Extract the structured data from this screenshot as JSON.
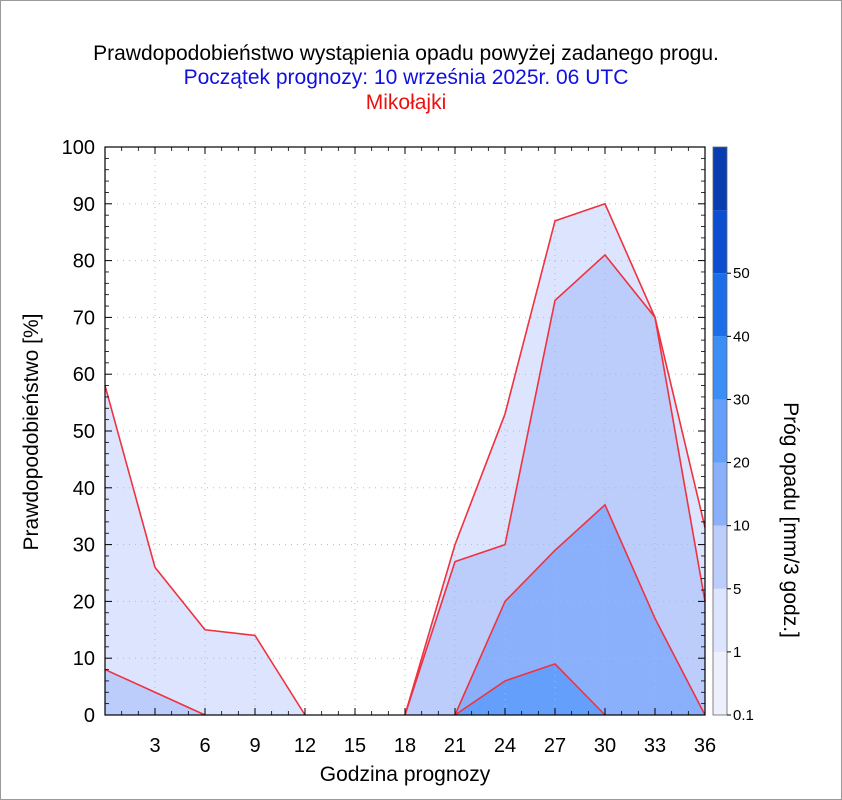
{
  "title": "Prawdopodobieństwo wystąpienia opadu powyżej zadanego progu.",
  "subtitle": "Początek prognozy: 10 września 2025r. 06 UTC",
  "location": "Mikołajki",
  "colors": {
    "title": "#000000",
    "subtitle": "#1010e0",
    "location": "#ee1010",
    "outline": "#ee3340"
  },
  "chart_data": {
    "type": "area",
    "xlabel": "Godzina prognozy",
    "ylabel": "Prawdopodobieństwo [%]",
    "xlim": [
      0,
      36
    ],
    "ylim": [
      0,
      100
    ],
    "x": [
      0,
      3,
      6,
      9,
      12,
      15,
      18,
      21,
      24,
      27,
      30,
      33,
      36
    ],
    "x_ticks": [
      3,
      6,
      9,
      12,
      15,
      18,
      21,
      24,
      27,
      30,
      33,
      36
    ],
    "y_ticks": [
      0,
      10,
      20,
      30,
      40,
      50,
      60,
      70,
      80,
      90,
      100
    ],
    "grid": true,
    "series": [
      {
        "threshold": "0.1",
        "color": "#dde4fd",
        "values": [
          58,
          26,
          15,
          14,
          0,
          0,
          0,
          30,
          53,
          87,
          90,
          70,
          33
        ]
      },
      {
        "threshold": "1",
        "color": "#bcccfb",
        "values": [
          8,
          4,
          0,
          0,
          0,
          0,
          0,
          27,
          30,
          73,
          81,
          70,
          20
        ]
      },
      {
        "threshold": "5",
        "color": "#8bb0fb",
        "values": [
          0,
          0,
          0,
          0,
          0,
          0,
          0,
          0,
          20,
          29,
          37,
          17,
          0
        ]
      },
      {
        "threshold": "10",
        "color": "#64a0fb",
        "values": [
          0,
          0,
          0,
          0,
          0,
          0,
          0,
          0,
          6,
          9,
          0,
          0,
          0
        ]
      }
    ],
    "colorbar": {
      "label": "Próg opadu [mm/3 godz.]",
      "tick_labels": [
        "0.1",
        "1",
        "5",
        "10",
        "20",
        "30",
        "40",
        "50"
      ],
      "colors": [
        "#eef0fd",
        "#dde4fd",
        "#bcccfb",
        "#8bb0fb",
        "#64a0fb",
        "#3a8ef5",
        "#1c6ee8",
        "#0b4fd0",
        "#073db0"
      ]
    }
  }
}
